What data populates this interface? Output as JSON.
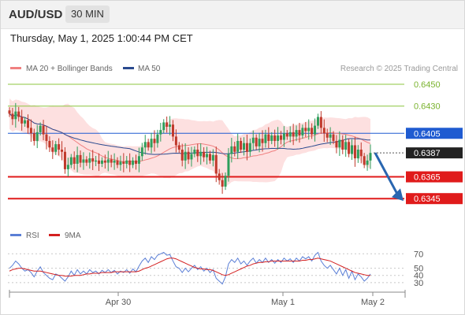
{
  "header": {
    "pair": "AUD/USD",
    "timeframe": "30 MIN"
  },
  "timestamp": "Thursday, May 1, 2025 1:00:44 PM CET",
  "legend": {
    "ma20": "MA 20 + Bollinger Bands",
    "ma50": "MA 50",
    "copyright": "Research © 2025 Trading Central",
    "rsi": "RSI",
    "rsi_ma": "9MA"
  },
  "colors": {
    "bull": "#2e9e5b",
    "bear": "#c0392b",
    "ma20": "#f08080",
    "ma50": "#2a4a8f",
    "band_fill": "#fde0e0",
    "resistance_green": "#8cc63f",
    "pivot_blue": "#1f5bd1",
    "support_red": "#e01b1b",
    "arrow": "#2966b0",
    "rsi_line": "#5b7fd6",
    "rsi_ma_line": "#d42020"
  },
  "chart_data": [
    {
      "type": "candlestick",
      "title": "",
      "x_tick_labels": [
        "Apr 30",
        "May 1",
        "May 2"
      ],
      "ylim": [
        0.6322,
        0.6458
      ],
      "levels": [
        {
          "label": "0.6450",
          "value": 0.645,
          "kind": "resistance"
        },
        {
          "label": "0.6430",
          "value": 0.643,
          "kind": "resistance"
        },
        {
          "label": "0.6405",
          "value": 0.6405,
          "kind": "pivot"
        },
        {
          "label": "0.6387",
          "value": 0.6387,
          "kind": "last"
        },
        {
          "label": "0.6365",
          "value": 0.6365,
          "kind": "support"
        },
        {
          "label": "0.6345",
          "value": 0.6345,
          "kind": "support"
        }
      ],
      "forecast_arrow": {
        "from": 0.6387,
        "to": 0.6345
      },
      "close": [
        0.6423,
        0.6418,
        0.6425,
        0.642,
        0.6414,
        0.6417,
        0.641,
        0.6405,
        0.6398,
        0.6406,
        0.6412,
        0.6404,
        0.6398,
        0.6392,
        0.6388,
        0.6395,
        0.639,
        0.6388,
        0.6372,
        0.6376,
        0.6383,
        0.6377,
        0.6385,
        0.6378,
        0.6381,
        0.6378,
        0.6382,
        0.6379,
        0.638,
        0.6377,
        0.638,
        0.6378,
        0.6381,
        0.6378,
        0.638,
        0.6376,
        0.6379,
        0.6377,
        0.638,
        0.6376,
        0.638,
        0.6377,
        0.6384,
        0.6392,
        0.6397,
        0.6392,
        0.64,
        0.6396,
        0.6404,
        0.6408,
        0.6415,
        0.6411,
        0.6413,
        0.6402,
        0.6394,
        0.639,
        0.638,
        0.6388,
        0.6381,
        0.6386,
        0.639,
        0.6384,
        0.6388,
        0.6383,
        0.6386,
        0.638,
        0.6385,
        0.6368,
        0.6362,
        0.6356,
        0.6366,
        0.6386,
        0.6393,
        0.6388,
        0.6398,
        0.639,
        0.6396,
        0.6388,
        0.6396,
        0.6401,
        0.6393,
        0.64,
        0.6396,
        0.6404,
        0.6398,
        0.6403,
        0.6398,
        0.6403,
        0.6399,
        0.6405,
        0.6402,
        0.6406,
        0.6402,
        0.6408,
        0.6403,
        0.641,
        0.6407,
        0.641,
        0.6404,
        0.6412,
        0.642,
        0.641,
        0.6405,
        0.6401,
        0.6404,
        0.6398,
        0.6392,
        0.6399,
        0.639,
        0.6397,
        0.6386,
        0.6394,
        0.6382,
        0.639,
        0.6384,
        0.6376,
        0.638,
        0.6387
      ]
    },
    {
      "type": "line",
      "title": "",
      "series_names": [
        "RSI",
        "9MA"
      ],
      "y_tick_labels": [
        "70",
        "50",
        "40",
        "30"
      ],
      "ylim": [
        20,
        78
      ],
      "series": [
        {
          "name": "RSI",
          "values": [
            50,
            54,
            60,
            56,
            50,
            46,
            48,
            44,
            38,
            46,
            52,
            44,
            40,
            36,
            34,
            42,
            40,
            36,
            32,
            38,
            46,
            40,
            48,
            42,
            46,
            42,
            48,
            44,
            46,
            42,
            47,
            44,
            48,
            44,
            47,
            42,
            46,
            44,
            48,
            43,
            49,
            45,
            53,
            60,
            64,
            58,
            66,
            62,
            68,
            70,
            72,
            68,
            69,
            60,
            52,
            50,
            44,
            50,
            45,
            50,
            54,
            48,
            52,
            46,
            50,
            44,
            48,
            36,
            32,
            28,
            38,
            56,
            62,
            58,
            64,
            56,
            60,
            54,
            60,
            64,
            57,
            62,
            58,
            64,
            58,
            62,
            57,
            62,
            58,
            64,
            60,
            63,
            58,
            64,
            60,
            66,
            63,
            66,
            60,
            68,
            72,
            60,
            54,
            50,
            54,
            48,
            42,
            50,
            40,
            48,
            36,
            46,
            34,
            42,
            38,
            32,
            36,
            42
          ]
        },
        {
          "name": "9MA",
          "values": [
            46,
            48,
            49,
            50,
            50,
            49,
            48,
            47,
            46,
            46,
            46,
            45,
            44,
            43,
            42,
            41,
            40,
            40,
            39,
            39,
            39,
            40,
            40,
            40,
            41,
            42,
            42,
            43,
            43,
            43,
            44,
            44,
            44,
            44,
            45,
            45,
            45,
            45,
            45,
            45,
            45,
            45,
            46,
            48,
            50,
            51,
            53,
            55,
            57,
            59,
            61,
            63,
            64,
            64,
            63,
            61,
            59,
            57,
            55,
            53,
            51,
            50,
            49,
            49,
            48,
            48,
            47,
            45,
            43,
            41,
            40,
            41,
            43,
            45,
            47,
            49,
            51,
            53,
            54,
            56,
            57,
            58,
            58,
            59,
            59,
            60,
            60,
            60,
            60,
            60,
            60,
            60,
            60,
            60,
            60,
            61,
            61,
            62,
            62,
            63,
            64,
            63,
            62,
            61,
            60,
            58,
            56,
            54,
            52,
            50,
            48,
            46,
            44,
            43,
            42,
            41,
            40,
            40
          ]
        }
      ]
    }
  ]
}
